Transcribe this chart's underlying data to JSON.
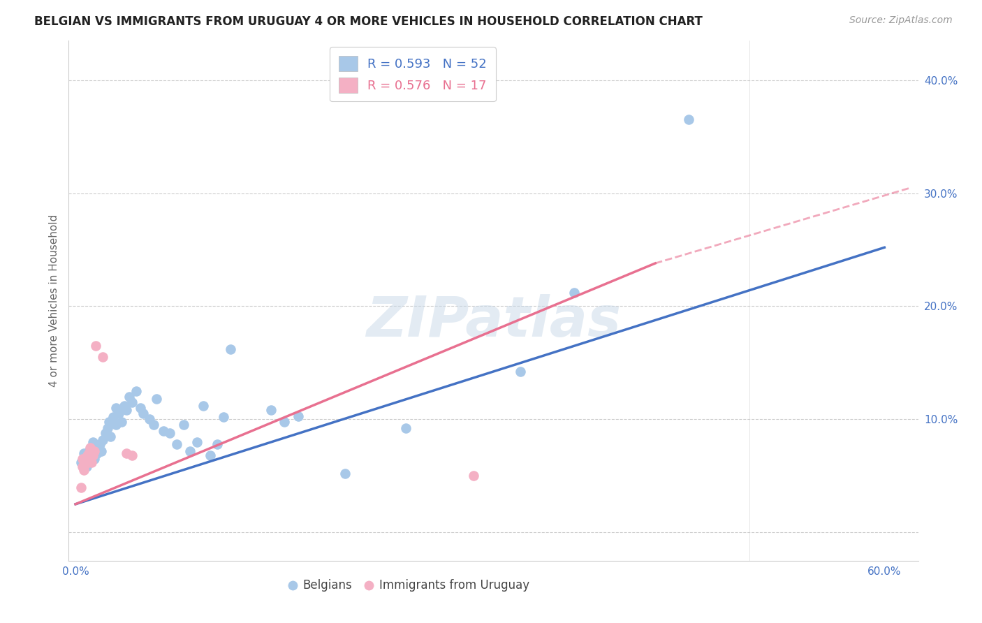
{
  "title": "BELGIAN VS IMMIGRANTS FROM URUGUAY 4 OR MORE VEHICLES IN HOUSEHOLD CORRELATION CHART",
  "source": "Source: ZipAtlas.com",
  "ylabel": "4 or more Vehicles in Household",
  "xlim": [
    -0.005,
    0.625
  ],
  "ylim": [
    -0.025,
    0.435
  ],
  "xticks": [
    0.0,
    0.1,
    0.2,
    0.3,
    0.4,
    0.5,
    0.6
  ],
  "yticks": [
    0.0,
    0.1,
    0.2,
    0.3,
    0.4
  ],
  "blue_color": "#a8c8e8",
  "pink_color": "#f4b0c4",
  "blue_line_color": "#4472c4",
  "pink_line_color": "#e87090",
  "watermark": "ZIPatlas",
  "blue_R": "0.593",
  "blue_N": "52",
  "pink_R": "0.576",
  "pink_N": "17",
  "blue_points": [
    [
      0.004,
      0.062
    ],
    [
      0.006,
      0.07
    ],
    [
      0.008,
      0.058
    ],
    [
      0.009,
      0.065
    ],
    [
      0.01,
      0.072
    ],
    [
      0.011,
      0.068
    ],
    [
      0.012,
      0.075
    ],
    [
      0.013,
      0.08
    ],
    [
      0.014,
      0.065
    ],
    [
      0.015,
      0.073
    ],
    [
      0.016,
      0.07
    ],
    [
      0.018,
      0.078
    ],
    [
      0.019,
      0.072
    ],
    [
      0.02,
      0.082
    ],
    [
      0.022,
      0.088
    ],
    [
      0.024,
      0.092
    ],
    [
      0.025,
      0.098
    ],
    [
      0.026,
      0.085
    ],
    [
      0.028,
      0.102
    ],
    [
      0.03,
      0.095
    ],
    [
      0.03,
      0.11
    ],
    [
      0.032,
      0.105
    ],
    [
      0.034,
      0.098
    ],
    [
      0.036,
      0.112
    ],
    [
      0.038,
      0.108
    ],
    [
      0.04,
      0.12
    ],
    [
      0.042,
      0.115
    ],
    [
      0.045,
      0.125
    ],
    [
      0.048,
      0.11
    ],
    [
      0.05,
      0.105
    ],
    [
      0.055,
      0.1
    ],
    [
      0.058,
      0.095
    ],
    [
      0.06,
      0.118
    ],
    [
      0.065,
      0.09
    ],
    [
      0.07,
      0.088
    ],
    [
      0.075,
      0.078
    ],
    [
      0.08,
      0.095
    ],
    [
      0.085,
      0.072
    ],
    [
      0.09,
      0.08
    ],
    [
      0.095,
      0.112
    ],
    [
      0.1,
      0.068
    ],
    [
      0.105,
      0.078
    ],
    [
      0.11,
      0.102
    ],
    [
      0.115,
      0.162
    ],
    [
      0.145,
      0.108
    ],
    [
      0.155,
      0.098
    ],
    [
      0.165,
      0.103
    ],
    [
      0.2,
      0.052
    ],
    [
      0.245,
      0.092
    ],
    [
      0.33,
      0.142
    ],
    [
      0.37,
      0.212
    ],
    [
      0.455,
      0.365
    ]
  ],
  "pink_points": [
    [
      0.004,
      0.04
    ],
    [
      0.005,
      0.058
    ],
    [
      0.005,
      0.065
    ],
    [
      0.006,
      0.055
    ],
    [
      0.007,
      0.06
    ],
    [
      0.008,
      0.062
    ],
    [
      0.009,
      0.068
    ],
    [
      0.01,
      0.07
    ],
    [
      0.011,
      0.075
    ],
    [
      0.012,
      0.062
    ],
    [
      0.013,
      0.068
    ],
    [
      0.014,
      0.072
    ],
    [
      0.015,
      0.165
    ],
    [
      0.02,
      0.155
    ],
    [
      0.038,
      0.07
    ],
    [
      0.042,
      0.068
    ],
    [
      0.295,
      0.05
    ]
  ],
  "blue_trendline": [
    0.0,
    0.025,
    0.6,
    0.252
  ],
  "pink_trendline_solid": [
    0.0,
    0.025,
    0.43,
    0.238
  ],
  "pink_trendline_dashed": [
    0.43,
    0.238,
    0.62,
    0.305
  ]
}
